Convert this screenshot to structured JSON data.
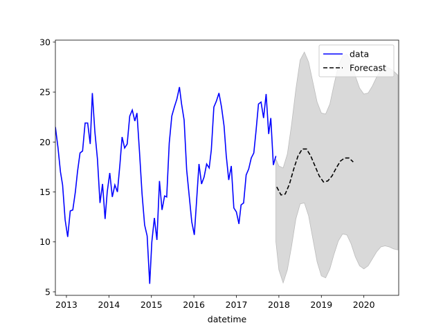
{
  "chart_data": {
    "type": "line",
    "xlabel": "datetime",
    "xlim": [
      2012.74,
      2020.82
    ],
    "xticks": [
      2013,
      2014,
      2015,
      2016,
      2017,
      2018,
      2019,
      2020
    ],
    "ylim": [
      4.65,
      30.2
    ],
    "yticks": [
      5,
      10,
      15,
      20,
      25,
      30
    ],
    "legend": "upper right",
    "series": [
      {
        "name": "data",
        "color": "#0000ff",
        "linestyle": "solid",
        "x": [
          2012.74,
          2012.8,
          2012.86,
          2012.91,
          2012.97,
          2013.03,
          2013.09,
          2013.15,
          2013.21,
          2013.26,
          2013.32,
          2013.38,
          2013.44,
          2013.5,
          2013.56,
          2013.61,
          2013.67,
          2013.73,
          2013.79,
          2013.85,
          2013.91,
          2013.96,
          2014.02,
          2014.08,
          2014.14,
          2014.2,
          2014.26,
          2014.31,
          2014.37,
          2014.43,
          2014.49,
          2014.55,
          2014.61,
          2014.66,
          2014.72,
          2014.78,
          2014.84,
          2014.9,
          2014.96,
          2015.01,
          2015.07,
          2015.13,
          2015.19,
          2015.25,
          2015.31,
          2015.36,
          2015.42,
          2015.48,
          2015.54,
          2015.6,
          2015.66,
          2015.71,
          2015.77,
          2015.83,
          2015.89,
          2015.95,
          2016.01,
          2016.06,
          2016.12,
          2016.18,
          2016.24,
          2016.3,
          2016.36,
          2016.41,
          2016.47,
          2016.53,
          2016.59,
          2016.65,
          2016.71,
          2016.76,
          2016.82,
          2016.88,
          2016.94,
          2017.0,
          2017.06,
          2017.11,
          2017.17,
          2017.23,
          2017.29,
          2017.35,
          2017.41,
          2017.46,
          2017.52,
          2017.58,
          2017.64,
          2017.7,
          2017.76,
          2017.81,
          2017.87,
          2017.93
        ],
        "values": [
          21.5,
          19.5,
          17,
          15.7,
          12.2,
          10.5,
          13.1,
          13.2,
          15,
          17,
          18.9,
          19.1,
          21.9,
          21.9,
          19.8,
          24.9,
          21,
          18.3,
          13.9,
          15.8,
          12.3,
          15,
          16.9,
          14.5,
          15.7,
          15,
          17.8,
          20.5,
          19.4,
          19.8,
          22.6,
          23.2,
          22.1,
          22.9,
          19,
          14.8,
          11.7,
          10.6,
          5.8,
          10,
          12.4,
          10.2,
          16.1,
          13.2,
          14.6,
          14.5,
          19.9,
          22.6,
          23.5,
          24.3,
          25.5,
          23.8,
          22.2,
          17.2,
          14.6,
          12,
          10.7,
          13.9,
          17.8,
          15.8,
          16.5,
          17.8,
          17.4,
          19.2,
          23.5,
          24.1,
          24.9,
          23.5,
          21.6,
          18.7,
          16.2,
          17.6,
          13.4,
          13,
          11.8,
          13.7,
          13.9,
          16.7,
          17.3,
          18.4,
          18.9,
          21,
          23.8,
          24,
          22.4,
          24.8,
          20.8,
          22.4,
          17.7,
          18.6
        ]
      },
      {
        "name": "Forecast",
        "color": "#000000",
        "linestyle": "dashed",
        "x": [
          2017.95,
          2018.05,
          2018.15,
          2018.25,
          2018.35,
          2018.45,
          2018.55,
          2018.65,
          2018.75,
          2018.85,
          2018.95,
          2019.05,
          2019.15,
          2019.25,
          2019.35,
          2019.45,
          2019.55,
          2019.65,
          2019.75
        ],
        "values": [
          15.5,
          14.7,
          14.8,
          15.8,
          17.3,
          18.6,
          19.3,
          19.3,
          18.6,
          17.6,
          16.6,
          16.0,
          16.1,
          16.6,
          17.4,
          18.1,
          18.4,
          18.4,
          18.0
        ]
      }
    ],
    "band": {
      "color": "#d9d9d9",
      "x": [
        2017.93,
        2018.0,
        2018.1,
        2018.2,
        2018.3,
        2018.4,
        2018.5,
        2018.6,
        2018.7,
        2018.8,
        2018.9,
        2019.0,
        2019.1,
        2019.2,
        2019.3,
        2019.4,
        2019.5,
        2019.6,
        2019.7,
        2019.8,
        2019.9,
        2020.0,
        2020.1,
        2020.2,
        2020.3,
        2020.4,
        2020.5,
        2020.6,
        2020.7,
        2020.8
      ],
      "upper": [
        18.3,
        17.6,
        17.4,
        18.8,
        21.8,
        25.3,
        28.2,
        29.0,
        28.0,
        26.0,
        24.0,
        22.9,
        22.8,
        23.8,
        25.8,
        27.6,
        28.6,
        28.8,
        28.0,
        26.6,
        25.4,
        24.8,
        24.9,
        25.6,
        26.5,
        27.2,
        27.5,
        27.4,
        27.1,
        26.7
      ],
      "lower": [
        10.0,
        7.2,
        5.9,
        7.2,
        9.6,
        12.3,
        13.8,
        13.9,
        12.6,
        10.3,
        8.0,
        6.6,
        6.4,
        7.3,
        8.8,
        10.1,
        10.8,
        10.7,
        9.8,
        8.5,
        7.6,
        7.3,
        7.6,
        8.3,
        9.0,
        9.5,
        9.6,
        9.5,
        9.3,
        9.2
      ]
    }
  }
}
